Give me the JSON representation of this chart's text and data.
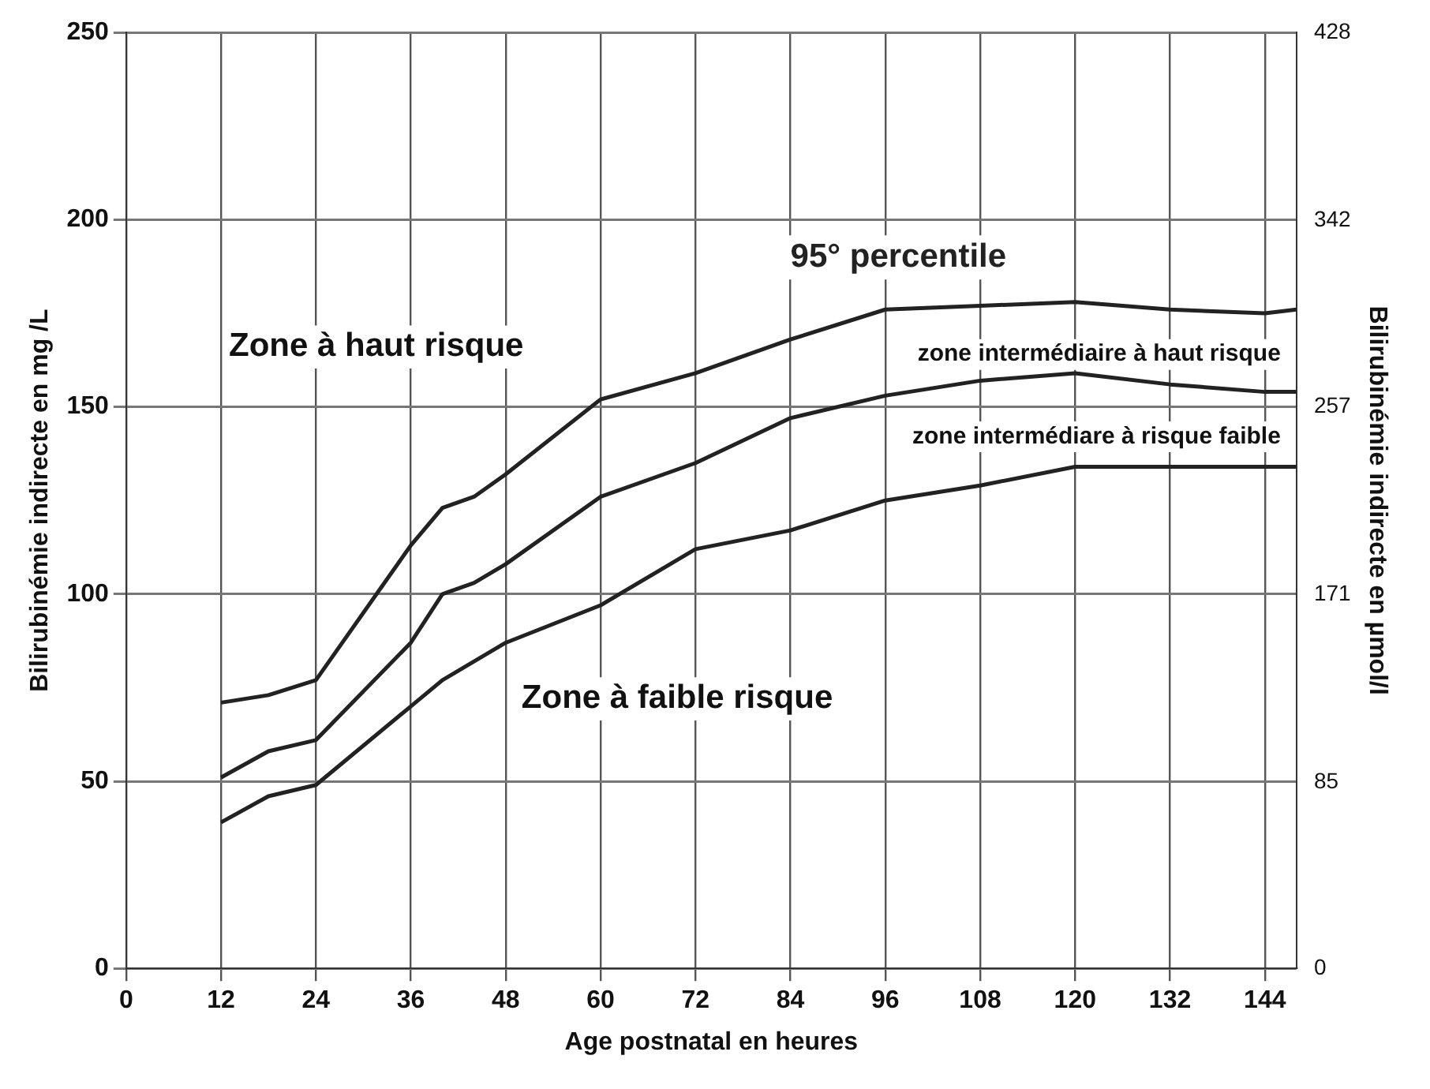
{
  "chart_data": {
    "type": "line",
    "xlabel": "Age postnatal en heures",
    "ylabel": "Bilirubinémie indirecte en mg /L",
    "y2label": "Bilirubinémie indirecte en µmol/l",
    "xlim": [
      0,
      148
    ],
    "xticks": [
      0,
      12,
      24,
      36,
      48,
      60,
      72,
      84,
      96,
      108,
      120,
      132,
      144
    ],
    "ylim": [
      0,
      250
    ],
    "yticks": [
      0,
      50,
      100,
      150,
      200,
      250
    ],
    "y2lim": [
      0,
      428
    ],
    "y2ticks": [
      0,
      85,
      171,
      257,
      342,
      428
    ],
    "grid": true,
    "legend": false,
    "marker": "none",
    "line_style": "solid",
    "annotations": [
      "Zone à haut risque",
      "zone intermédiaire à haut risque",
      "zone intermédiare à risque faible",
      "Zone à faible risque"
    ],
    "series": [
      {
        "name": "95° percentile",
        "color": "#222222",
        "x": [
          12,
          18,
          24,
          36,
          40,
          44,
          48,
          60,
          72,
          84,
          96,
          108,
          120,
          132,
          144,
          148
        ],
        "values": [
          71,
          73,
          77,
          113,
          123,
          126,
          132,
          152,
          159,
          168,
          176,
          177,
          178,
          176,
          175,
          176
        ]
      },
      {
        "color": "#222222",
        "x": [
          12,
          18,
          24,
          36,
          40,
          44,
          48,
          60,
          72,
          84,
          96,
          108,
          120,
          132,
          144,
          148
        ],
        "values": [
          51,
          58,
          61,
          87,
          100,
          103,
          108,
          126,
          135,
          147,
          153,
          157,
          159,
          156,
          154,
          154
        ]
      },
      {
        "color": "#222222",
        "x": [
          12,
          18,
          24,
          36,
          40,
          44,
          48,
          60,
          72,
          84,
          96,
          108,
          120,
          132,
          144,
          148
        ],
        "values": [
          39,
          46,
          49,
          70,
          77,
          82,
          87,
          97,
          112,
          117,
          125,
          129,
          134,
          134,
          134,
          134
        ]
      }
    ]
  }
}
